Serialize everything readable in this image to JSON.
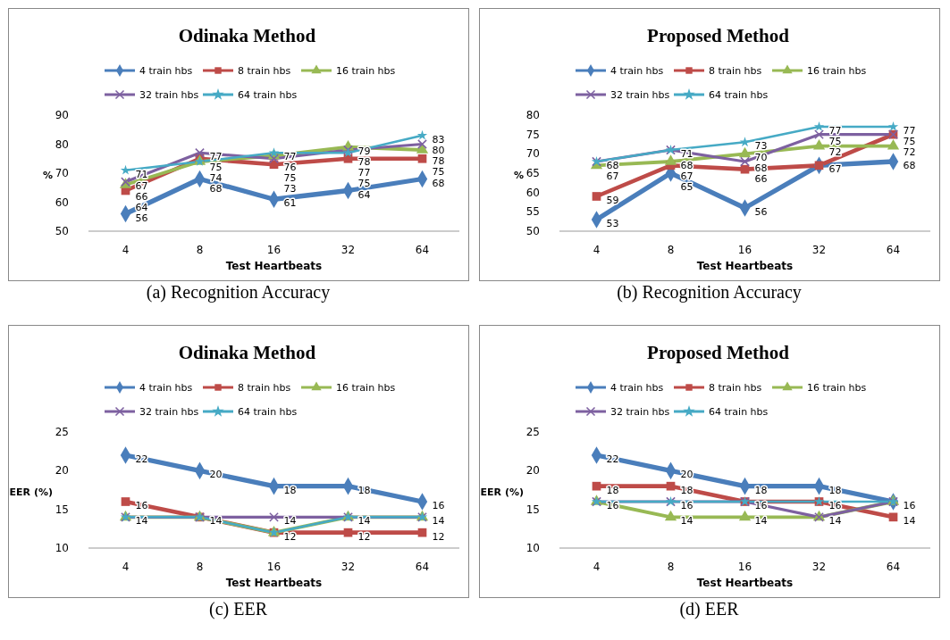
{
  "chart_data": [
    {
      "type": "line",
      "title": "Odinaka Method",
      "xlabel": "Test Heartbeats",
      "ylabel": "%",
      "categories": [
        "4",
        "8",
        "16",
        "32",
        "64"
      ],
      "ylim": [
        50,
        90
      ],
      "yticks": [
        50,
        60,
        70,
        80,
        90
      ],
      "legend": "top",
      "annotations": [
        "(a) Recognition Accuracy"
      ],
      "series": [
        {
          "name": "4 train hbs",
          "color": "#4a7ebb",
          "marker": "diamond",
          "values": [
            56,
            68,
            61,
            64,
            68
          ],
          "value_labels": [
            "56",
            "68",
            "61",
            "64",
            "68"
          ]
        },
        {
          "name": "8 train hbs",
          "color": "#be4b48",
          "marker": "square",
          "values": [
            64,
            75,
            73,
            75,
            75
          ],
          "value_labels": [
            "64",
            "75",
            "73",
            "75",
            "75"
          ]
        },
        {
          "name": "16 train hbs",
          "color": "#98b954",
          "marker": "triangle",
          "values": [
            66,
            74,
            76,
            79,
            78
          ],
          "value_labels": [
            "66",
            "74",
            "76",
            "79",
            "78"
          ]
        },
        {
          "name": "32 train hbs",
          "color": "#7d60a0",
          "marker": "cross",
          "values": [
            67,
            77,
            75,
            78,
            80
          ],
          "value_labels": [
            "67",
            "77",
            "75",
            "78",
            "80"
          ]
        },
        {
          "name": "64 train hbs",
          "color": "#46aac5",
          "marker": "star",
          "values": [
            71,
            74,
            77,
            77,
            83
          ],
          "value_labels": [
            "71",
            null,
            "77",
            "77",
            "83"
          ]
        }
      ]
    },
    {
      "type": "line",
      "title": "Proposed Method",
      "xlabel": "Test Heartbeats",
      "ylabel": "%",
      "categories": [
        "4",
        "8",
        "16",
        "32",
        "64"
      ],
      "ylim": [
        50,
        80
      ],
      "yticks": [
        50,
        55,
        60,
        65,
        70,
        75,
        80
      ],
      "legend": "top",
      "annotations": [
        "(b) Recognition Accuracy"
      ],
      "series": [
        {
          "name": "4 train hbs",
          "color": "#4a7ebb",
          "marker": "diamond",
          "values": [
            53,
            65,
            56,
            67,
            68
          ],
          "value_labels": [
            "53",
            "65",
            "56",
            "67",
            "68"
          ]
        },
        {
          "name": "8 train hbs",
          "color": "#be4b48",
          "marker": "square",
          "values": [
            59,
            67,
            66,
            67,
            75
          ],
          "value_labels": [
            "59",
            "67",
            "66",
            null,
            "75"
          ]
        },
        {
          "name": "16 train hbs",
          "color": "#98b954",
          "marker": "triangle",
          "values": [
            67,
            68,
            70,
            72,
            72
          ],
          "value_labels": [
            "67",
            "68",
            "70",
            "72",
            "72"
          ]
        },
        {
          "name": "32 train hbs",
          "color": "#7d60a0",
          "marker": "cross",
          "values": [
            68,
            71,
            68,
            75,
            75
          ],
          "value_labels": [
            "68",
            "71",
            "68",
            "75",
            null
          ]
        },
        {
          "name": "64 train hbs",
          "color": "#46aac5",
          "marker": "star",
          "values": [
            68,
            71,
            73,
            77,
            77
          ],
          "value_labels": [
            null,
            null,
            "73",
            "77",
            "77"
          ]
        }
      ]
    },
    {
      "type": "line",
      "title": "Odinaka Method",
      "xlabel": "Test Heartbeats",
      "ylabel": "EER (%)",
      "categories": [
        "4",
        "8",
        "16",
        "32",
        "64"
      ],
      "ylim": [
        10,
        25
      ],
      "yticks": [
        10,
        15,
        20,
        25
      ],
      "legend": "top",
      "annotations": [
        "(c) EER"
      ],
      "series": [
        {
          "name": "4 train hbs",
          "color": "#4a7ebb",
          "marker": "diamond",
          "values": [
            22,
            20,
            18,
            18,
            16
          ],
          "value_labels": [
            "22",
            "20",
            "18",
            "18",
            "16"
          ]
        },
        {
          "name": "8 train hbs",
          "color": "#be4b48",
          "marker": "square",
          "values": [
            16,
            14,
            12,
            12,
            12
          ],
          "value_labels": [
            "16",
            "14",
            "12",
            "12",
            "12"
          ]
        },
        {
          "name": "16 train hbs",
          "color": "#98b954",
          "marker": "triangle",
          "values": [
            14,
            14,
            12,
            14,
            14
          ],
          "value_labels": [
            "14",
            null,
            null,
            "14",
            "14"
          ]
        },
        {
          "name": "32 train hbs",
          "color": "#7d60a0",
          "marker": "cross",
          "values": [
            14,
            14,
            14,
            14,
            14
          ],
          "value_labels": [
            null,
            null,
            "14",
            null,
            null
          ]
        },
        {
          "name": "64 train hbs",
          "color": "#46aac5",
          "marker": "star",
          "values": [
            14,
            14,
            12,
            14,
            14
          ],
          "value_labels": [
            null,
            null,
            null,
            null,
            null
          ]
        }
      ]
    },
    {
      "type": "line",
      "title": "Proposed Method",
      "xlabel": "Test Heartbeats",
      "ylabel": "EER (%)",
      "categories": [
        "4",
        "8",
        "16",
        "32",
        "64"
      ],
      "ylim": [
        10,
        25
      ],
      "yticks": [
        10,
        15,
        20,
        25
      ],
      "legend": "top",
      "annotations": [
        "(d) EER"
      ],
      "series": [
        {
          "name": "4 train hbs",
          "color": "#4a7ebb",
          "marker": "diamond",
          "values": [
            22,
            20,
            18,
            18,
            16
          ],
          "value_labels": [
            "22",
            "20",
            "18",
            "18",
            "16"
          ]
        },
        {
          "name": "8 train hbs",
          "color": "#be4b48",
          "marker": "square",
          "values": [
            18,
            18,
            16,
            16,
            14
          ],
          "value_labels": [
            "18",
            "18",
            "16",
            "16",
            "14"
          ]
        },
        {
          "name": "16 train hbs",
          "color": "#98b954",
          "marker": "triangle",
          "values": [
            16,
            14,
            14,
            14,
            16
          ],
          "value_labels": [
            "16",
            "14",
            "14",
            "14",
            null
          ]
        },
        {
          "name": "32 train hbs",
          "color": "#7d60a0",
          "marker": "cross",
          "values": [
            16,
            16,
            16,
            14,
            16
          ],
          "value_labels": [
            null,
            "16",
            null,
            null,
            null
          ]
        },
        {
          "name": "64 train hbs",
          "color": "#46aac5",
          "marker": "star",
          "values": [
            16,
            16,
            16,
            16,
            16
          ],
          "value_labels": [
            null,
            null,
            null,
            null,
            null
          ]
        }
      ]
    }
  ]
}
